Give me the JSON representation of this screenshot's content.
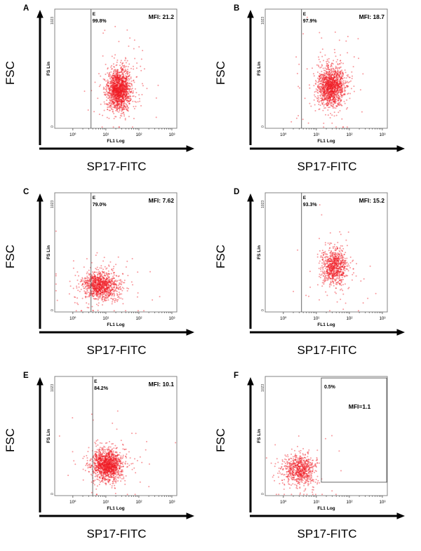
{
  "chart_data": {
    "type": "scatter",
    "description": "Six flow cytometry dot plots (A-F) of SP17-FITC fluorescence (FL1 Log) versus forward scatter (FS Lin)",
    "axes": {
      "y_outer": "FSC",
      "x_outer": "SP17-FITC",
      "y_inner": "FS Lin",
      "x_inner": "FL1 Log",
      "y_min": "0",
      "y_max": "1023",
      "x_ticks": [
        "10⁰",
        "10¹",
        "10²",
        "10³"
      ],
      "x_log_range": [
        -0.55,
        3.15
      ],
      "y_range": [
        0,
        1023
      ]
    },
    "panels": [
      {
        "letter": "A",
        "gate_label": "E",
        "percent": "99.8%",
        "mfi": "MFI: 21.2",
        "gate": {
          "type": "line",
          "log_x": 0.55
        },
        "cluster": {
          "n": 1600,
          "log_x_mean": 1.4,
          "log_x_sigma": 0.17,
          "y_mean": 330,
          "y_sigma": 85
        }
      },
      {
        "letter": "B",
        "gate_label": "E",
        "percent": "97.9%",
        "mfi": "MFI: 18.7",
        "gate": {
          "type": "line",
          "log_x": 0.55
        },
        "cluster": {
          "n": 1400,
          "log_x_mean": 1.45,
          "log_x_sigma": 0.2,
          "y_mean": 360,
          "y_sigma": 85
        }
      },
      {
        "letter": "C",
        "gate_label": "E",
        "percent": "79.0%",
        "mfi": "MFI: 7.62",
        "gate": {
          "type": "line",
          "log_x": 0.55
        },
        "cluster": {
          "n": 1100,
          "log_x_mean": 0.85,
          "log_x_sigma": 0.26,
          "y_mean": 225,
          "y_sigma": 60
        }
      },
      {
        "letter": "D",
        "gate_label": "E",
        "percent": "93.3%",
        "mfi": "MFI: 15.2",
        "gate": {
          "type": "line",
          "log_x": 0.55
        },
        "cluster": {
          "n": 800,
          "log_x_mean": 1.55,
          "log_x_sigma": 0.2,
          "y_mean": 390,
          "y_sigma": 80
        }
      },
      {
        "letter": "E",
        "gate_label": "E",
        "percent": "84.2%",
        "mfi": "MFI: 10.1",
        "gate": {
          "type": "line",
          "log_x": 0.6
        },
        "cluster": {
          "n": 1400,
          "log_x_mean": 1.05,
          "log_x_sigma": 0.22,
          "y_mean": 265,
          "y_sigma": 65
        }
      },
      {
        "letter": "F",
        "gate_label": "",
        "percent": "0.5%",
        "mfi": "MFI=1.1",
        "gate": {
          "type": "rect",
          "log_x_range": [
            1.15,
            3.13
          ],
          "y_range": [
            115,
            1010
          ]
        },
        "cluster": {
          "n": 750,
          "log_x_mean": 0.5,
          "log_x_sigma": 0.24,
          "y_mean": 220,
          "y_sigma": 65
        }
      }
    ]
  }
}
